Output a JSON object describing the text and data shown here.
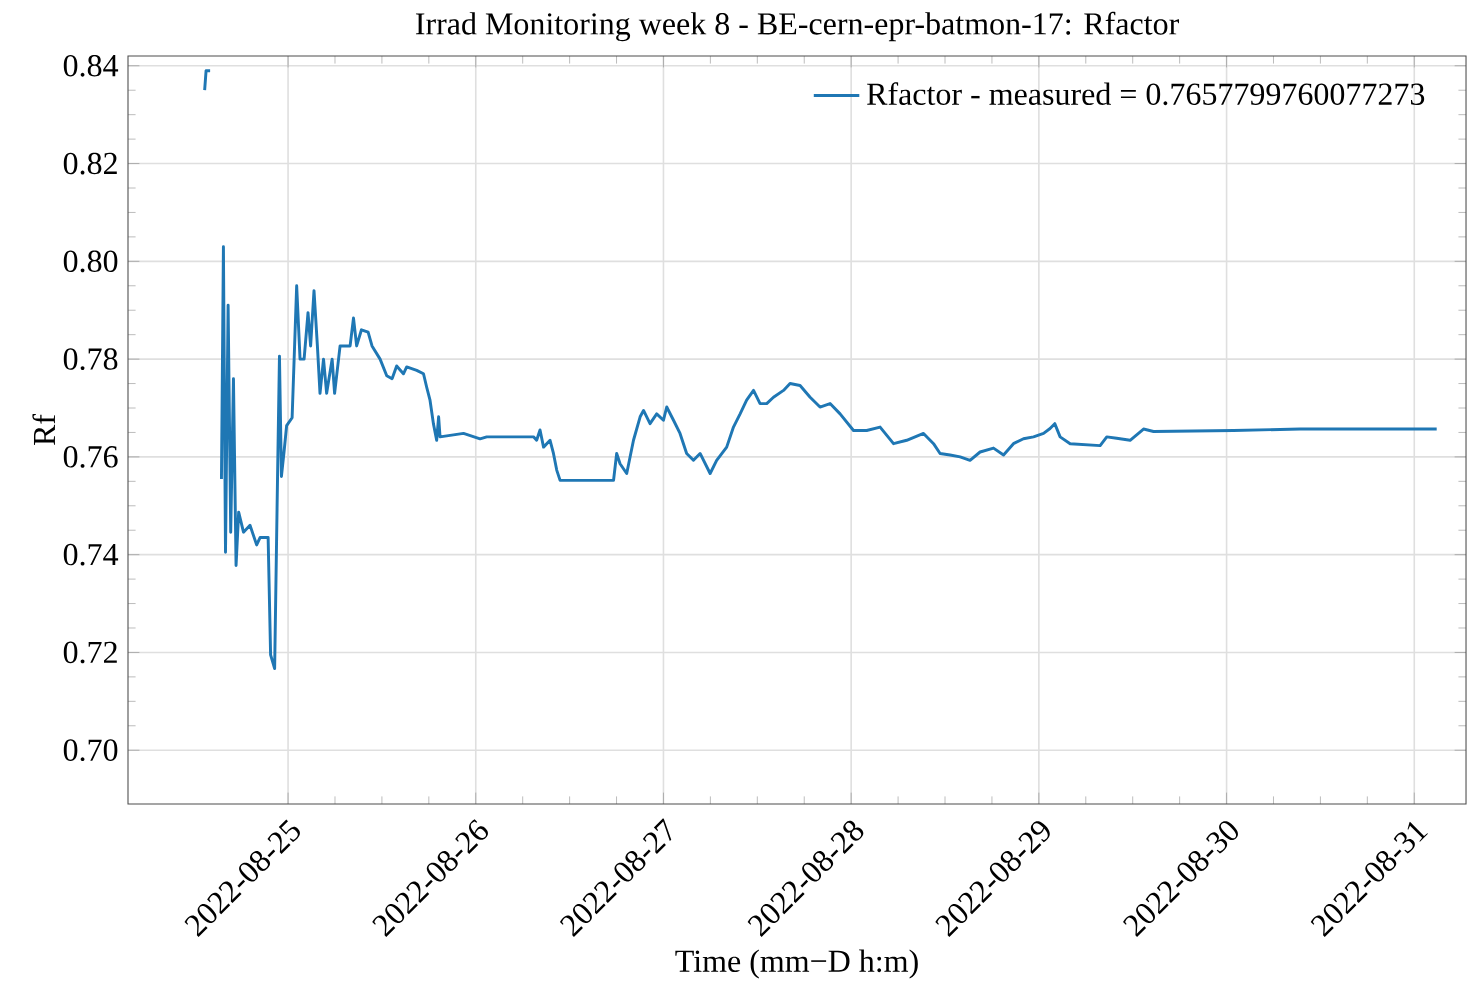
{
  "chart_data": {
    "type": "line",
    "title": "Irrad Monitoring week 8 - BE-cern-epr-batmon-17: Rfactor",
    "xlabel": "Time (mm−D h:m)",
    "ylabel": "Rf",
    "xlim": [
      "2022-08-24T03:32",
      "2022-08-31T06:37"
    ],
    "ylim": [
      0.689,
      0.842
    ],
    "xticks": [
      "2022-08-25",
      "2022-08-26",
      "2022-08-27",
      "2022-08-28",
      "2022-08-29",
      "2022-08-30",
      "2022-08-31"
    ],
    "yticks": [
      {
        "value": 0.7,
        "label": "0.70"
      },
      {
        "value": 0.72,
        "label": "0.72"
      },
      {
        "value": 0.74,
        "label": "0.74"
      },
      {
        "value": 0.76,
        "label": "0.76"
      },
      {
        "value": 0.78,
        "label": "0.78"
      },
      {
        "value": 0.8,
        "label": "0.80"
      },
      {
        "value": 0.82,
        "label": "0.82"
      },
      {
        "value": 0.84,
        "label": "0.84"
      }
    ],
    "grid": true,
    "legend": "top right",
    "series": [
      {
        "name": "Rfactor - measured = 0.7657799760077273",
        "color": "#1f77b4",
        "x": [
          "2022-08-24T13:20",
          "2022-08-24T13:31",
          "2022-08-24T14:02",
          "2022-08-24T14:37",
          "2022-08-24T15:29",
          "2022-08-24T15:44",
          "2022-08-24T16:00",
          "2022-08-24T16:20",
          "2022-08-24T16:40",
          "2022-08-24T17:01",
          "2022-08-24T17:21",
          "2022-08-24T17:41",
          "2022-08-24T18:18",
          "2022-08-24T19:08",
          "2022-08-24T19:59",
          "2022-08-24T20:25",
          "2022-08-24T21:27",
          "2022-08-24T21:46",
          "2022-08-24T22:17",
          "2022-08-24T22:39",
          "2022-08-24T22:54",
          "2022-08-24T23:09",
          "2022-08-24T23:29",
          "2022-08-24T23:49",
          "2022-08-25T00:31",
          "2022-08-25T01:06",
          "2022-08-25T01:32",
          "2022-08-25T02:03",
          "2022-08-25T02:33",
          "2022-08-25T02:53",
          "2022-08-25T03:19",
          "2022-08-25T03:45",
          "2022-08-25T04:05",
          "2022-08-25T04:32",
          "2022-08-25T04:56",
          "2022-08-25T05:38",
          "2022-08-25T05:57",
          "2022-08-25T06:39",
          "2022-08-25T07:56",
          "2022-08-25T08:22",
          "2022-08-25T08:46",
          "2022-08-25T09:23",
          "2022-08-25T10:14",
          "2022-08-25T10:44",
          "2022-08-25T11:46",
          "2022-08-25T12:37",
          "2022-08-25T13:18",
          "2022-08-25T13:53",
          "2022-08-25T14:45",
          "2022-08-25T15:10",
          "2022-08-25T16:27",
          "2022-08-25T17:19",
          "2022-08-25T17:43",
          "2022-08-25T18:09",
          "2022-08-25T18:35",
          "2022-08-25T19:00",
          "2022-08-25T19:15",
          "2022-08-25T19:26",
          "2022-08-25T22:26",
          "2022-08-26T00:33",
          "2022-08-26T01:24",
          "2022-08-26T07:23",
          "2022-08-26T07:47",
          "2022-08-26T08:13",
          "2022-08-26T08:40",
          "2022-08-26T09:30",
          "2022-08-26T09:56",
          "2022-08-26T10:21",
          "2022-08-26T10:47",
          "2022-08-26T17:37",
          "2022-08-26T18:01",
          "2022-08-26T18:27",
          "2022-08-26T19:18",
          "2022-08-26T20:10",
          "2022-08-26T21:01",
          "2022-08-26T21:27",
          "2022-08-26T22:17",
          "2022-08-26T23:08",
          "2022-08-27T00:00",
          "2022-08-27T00:25",
          "2022-08-27T01:17",
          "2022-08-27T02:07",
          "2022-08-27T02:58",
          "2022-08-27T03:50",
          "2022-08-27T04:41",
          "2022-08-27T05:58",
          "2022-08-27T06:48",
          "2022-08-27T08:05",
          "2022-08-27T08:57",
          "2022-08-27T09:48",
          "2022-08-27T10:38",
          "2022-08-27T11:31",
          "2022-08-27T12:21",
          "2022-08-27T13:12",
          "2022-08-27T14:04",
          "2022-08-27T15:21",
          "2022-08-27T16:11",
          "2022-08-27T17:28",
          "2022-08-27T18:45",
          "2022-08-27T20:01",
          "2022-08-27T21:18",
          "2022-08-27T22:35",
          "2022-08-28T00:18",
          "2022-08-28T01:59",
          "2022-08-28T03:42",
          "2022-08-28T05:25",
          "2022-08-28T07:06",
          "2022-08-28T09:15",
          "2022-08-28T10:32",
          "2022-08-28T11:22",
          "2022-08-28T12:39",
          "2022-08-28T13:56",
          "2022-08-28T15:12",
          "2022-08-28T16:29",
          "2022-08-28T18:12",
          "2022-08-28T19:29",
          "2022-08-28T20:45",
          "2022-08-28T22:02",
          "2022-08-28T23:19",
          "2022-08-29T00:36",
          "2022-08-29T01:26",
          "2022-08-29T02:02",
          "2022-08-29T02:43",
          "2022-08-29T04:00",
          "2022-08-29T07:50",
          "2022-08-29T08:41",
          "2022-08-29T09:57",
          "2022-08-29T11:40",
          "2022-08-29T13:23",
          "2022-08-29T14:40",
          "2022-08-30T00:53",
          "2022-08-30T09:24",
          "2022-08-31T02:52"
        ],
        "values": [
          0.835,
          0.839,
          0.839,
          null,
          0.7555,
          0.803,
          0.7405,
          0.791,
          0.7446,
          0.776,
          0.7378,
          0.7487,
          0.7446,
          0.746,
          0.742,
          0.7435,
          0.7435,
          0.7195,
          0.7167,
          0.7555,
          0.7806,
          0.756,
          0.761,
          0.7664,
          0.768,
          0.795,
          0.78,
          0.78,
          0.7895,
          0.7827,
          0.794,
          0.7827,
          0.773,
          0.78,
          0.773,
          0.78,
          0.773,
          0.7827,
          0.7827,
          0.7884,
          0.7827,
          0.786,
          0.7855,
          0.7827,
          0.78,
          0.7766,
          0.776,
          0.7786,
          0.777,
          0.7784,
          0.7777,
          0.777,
          0.7743,
          0.7716,
          0.7668,
          0.7634,
          0.7682,
          0.7641,
          0.7648,
          0.7637,
          0.7641,
          0.7641,
          0.7634,
          0.7655,
          0.762,
          0.7634,
          0.7607,
          0.7573,
          0.7552,
          0.7552,
          0.7607,
          0.7586,
          0.7566,
          0.7634,
          0.7682,
          0.7695,
          0.7668,
          0.7688,
          0.7675,
          0.7702,
          0.7675,
          0.7648,
          0.7607,
          0.7593,
          0.7607,
          0.7566,
          0.7593,
          0.762,
          0.7661,
          0.7688,
          0.7716,
          0.7736,
          0.7709,
          0.7709,
          0.7722,
          0.7736,
          0.775,
          0.7746,
          0.7722,
          0.7702,
          0.7709,
          0.7688,
          0.7654,
          0.7654,
          0.7661,
          0.7627,
          0.7634,
          0.7648,
          0.7627,
          0.7607,
          0.7604,
          0.76,
          0.7593,
          0.761,
          0.7618,
          0.7604,
          0.7627,
          0.7637,
          0.7641,
          0.7648,
          0.7658,
          0.7668,
          0.7641,
          0.7627,
          0.7623,
          0.7641,
          0.7638,
          0.7634,
          0.7657,
          0.7652,
          0.7654,
          0.7657,
          0.7657
        ]
      }
    ]
  }
}
